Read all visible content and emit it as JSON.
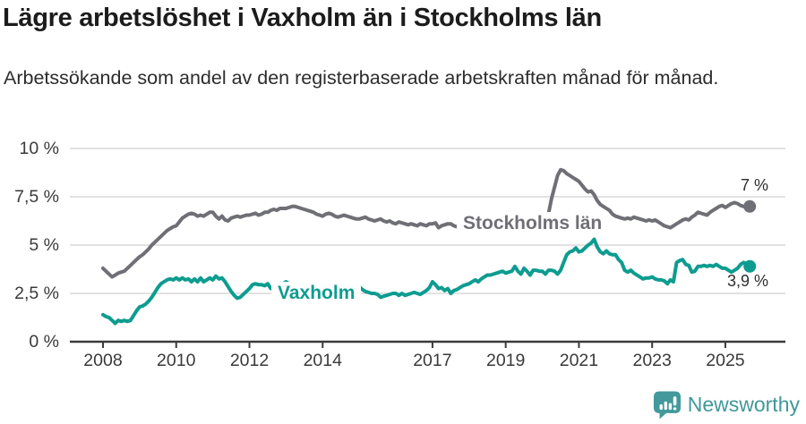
{
  "header": {
    "title": "Lägre arbetslöshet i Vaxholm än i Stockholms län",
    "subtitle": "Arbetssökande som andel av den registerbaserade arbetskraften månad för månad."
  },
  "chart_data": {
    "type": "line",
    "title": "Lägre arbetslöshet i Vaxholm än i Stockholms län",
    "xlabel": "",
    "ylabel": "",
    "ylim": [
      0,
      10
    ],
    "grid": true,
    "grid_color": "#d9d9d9",
    "axis_color": "#3b3b3b",
    "x_start": "2008-01",
    "x_end": "2025-09",
    "points_per_year": 12,
    "y_axis": {
      "ticks": [
        {
          "label": "0 %",
          "value": 0
        },
        {
          "label": "2,5 %",
          "value": 2.5
        },
        {
          "label": "5 %",
          "value": 5
        },
        {
          "label": "7,5 %",
          "value": 7.5
        },
        {
          "label": "10 %",
          "value": 10
        }
      ]
    },
    "x_axis": {
      "ticks": [
        {
          "label": "2008",
          "year": 2008
        },
        {
          "label": "2010",
          "year": 2010
        },
        {
          "label": "2012",
          "year": 2012
        },
        {
          "label": "2014",
          "year": 2014
        },
        {
          "label": "2017",
          "year": 2017
        },
        {
          "label": "2019",
          "year": 2019
        },
        {
          "label": "2021",
          "year": 2021
        },
        {
          "label": "2023",
          "year": 2023
        },
        {
          "label": "2025",
          "year": 2025
        }
      ]
    },
    "series": [
      {
        "name": "Stockholms län",
        "color": "#6f6f76",
        "end_label": "7 %",
        "values": [
          3.8,
          3.65,
          3.5,
          3.35,
          3.45,
          3.55,
          3.6,
          3.65,
          3.8,
          3.95,
          4.1,
          4.25,
          4.4,
          4.5,
          4.65,
          4.8,
          5.0,
          5.15,
          5.3,
          5.45,
          5.6,
          5.75,
          5.85,
          5.95,
          6.0,
          6.2,
          6.4,
          6.5,
          6.6,
          6.65,
          6.6,
          6.5,
          6.55,
          6.5,
          6.6,
          6.7,
          6.7,
          6.5,
          6.35,
          6.5,
          6.3,
          6.25,
          6.4,
          6.45,
          6.5,
          6.45,
          6.5,
          6.55,
          6.55,
          6.6,
          6.65,
          6.55,
          6.6,
          6.7,
          6.7,
          6.8,
          6.85,
          6.8,
          6.9,
          6.9,
          6.9,
          6.95,
          7.0,
          7.0,
          6.95,
          6.9,
          6.85,
          6.8,
          6.75,
          6.7,
          6.6,
          6.55,
          6.5,
          6.6,
          6.65,
          6.6,
          6.5,
          6.45,
          6.5,
          6.55,
          6.5,
          6.45,
          6.4,
          6.35,
          6.35,
          6.4,
          6.45,
          6.35,
          6.3,
          6.25,
          6.3,
          6.35,
          6.25,
          6.2,
          6.25,
          6.15,
          6.1,
          6.2,
          6.15,
          6.1,
          6.05,
          6.1,
          6.05,
          6.0,
          6.1,
          6.05,
          6.0,
          6.1,
          6.1,
          6.15,
          5.9,
          6.0,
          6.05,
          6.1,
          6.1,
          6.0,
          5.95,
          6.0,
          5.95,
          5.9,
          5.9,
          5.95,
          5.9,
          5.85,
          5.9,
          5.95,
          5.9,
          5.85,
          5.9,
          5.95,
          5.9,
          5.95,
          5.95,
          6.0,
          5.95,
          6.0,
          6.05,
          6.0,
          6.05,
          6.1,
          6.05,
          6.1,
          6.15,
          6.2,
          6.2,
          6.3,
          6.6,
          7.4,
          8.0,
          8.6,
          8.9,
          8.85,
          8.7,
          8.6,
          8.5,
          8.4,
          8.3,
          8.1,
          7.9,
          7.75,
          7.8,
          7.6,
          7.3,
          7.1,
          7.0,
          6.9,
          6.8,
          6.6,
          6.5,
          6.45,
          6.4,
          6.35,
          6.4,
          6.35,
          6.45,
          6.4,
          6.35,
          6.3,
          6.25,
          6.3,
          6.25,
          6.3,
          6.2,
          6.1,
          6.0,
          5.95,
          5.9,
          6.0,
          6.1,
          6.2,
          6.3,
          6.35,
          6.3,
          6.45,
          6.55,
          6.7,
          6.65,
          6.6,
          6.55,
          6.7,
          6.8,
          6.9,
          7.0,
          7.05,
          6.95,
          7.05,
          7.15,
          7.2,
          7.15,
          7.05,
          7.0,
          6.95,
          7.0
        ]
      },
      {
        "name": "Vaxholm",
        "color": "#0e9c90",
        "end_label": "3,9 %",
        "values": [
          1.4,
          1.3,
          1.25,
          1.1,
          0.95,
          1.1,
          1.05,
          1.1,
          1.05,
          1.1,
          1.35,
          1.6,
          1.8,
          1.85,
          1.95,
          2.1,
          2.3,
          2.55,
          2.8,
          3.0,
          3.1,
          3.2,
          3.25,
          3.2,
          3.3,
          3.2,
          3.3,
          3.2,
          3.25,
          3.1,
          3.25,
          3.1,
          3.3,
          3.1,
          3.2,
          3.3,
          3.2,
          3.4,
          3.25,
          3.3,
          3.1,
          2.85,
          2.6,
          2.4,
          2.25,
          2.3,
          2.45,
          2.6,
          2.75,
          2.95,
          3.0,
          2.95,
          2.95,
          2.9,
          3.0,
          2.75,
          2.8,
          2.65,
          2.8,
          3.0,
          3.1,
          3.0,
          2.95,
          2.9,
          2.95,
          2.9,
          2.85,
          2.9,
          2.85,
          2.8,
          2.85,
          2.9,
          2.9,
          2.85,
          2.9,
          2.85,
          2.8,
          2.85,
          2.8,
          2.85,
          2.9,
          2.85,
          2.9,
          2.88,
          2.85,
          2.7,
          2.6,
          2.55,
          2.5,
          2.5,
          2.45,
          2.3,
          2.35,
          2.4,
          2.45,
          2.5,
          2.5,
          2.4,
          2.5,
          2.4,
          2.45,
          2.5,
          2.55,
          2.5,
          2.45,
          2.55,
          2.65,
          2.8,
          3.1,
          2.95,
          2.75,
          2.8,
          2.65,
          2.75,
          2.5,
          2.65,
          2.7,
          2.8,
          2.9,
          2.95,
          3.0,
          3.1,
          3.2,
          3.1,
          3.25,
          3.35,
          3.45,
          3.45,
          3.5,
          3.55,
          3.6,
          3.65,
          3.55,
          3.6,
          3.65,
          3.9,
          3.65,
          3.5,
          3.8,
          3.65,
          3.45,
          3.7,
          3.7,
          3.65,
          3.65,
          3.5,
          3.7,
          3.7,
          3.65,
          3.5,
          3.7,
          4.1,
          4.5,
          4.65,
          4.7,
          4.85,
          4.65,
          4.7,
          4.85,
          5.0,
          5.1,
          5.3,
          4.9,
          4.65,
          4.55,
          4.7,
          4.55,
          4.5,
          4.5,
          4.25,
          4.1,
          3.7,
          3.6,
          3.7,
          3.55,
          3.45,
          3.35,
          3.25,
          3.3,
          3.3,
          3.35,
          3.25,
          3.2,
          3.2,
          3.15,
          3.0,
          3.2,
          3.1,
          4.1,
          4.2,
          4.25,
          4.0,
          3.95,
          3.6,
          3.65,
          3.9,
          3.9,
          3.95,
          3.9,
          3.95,
          3.9,
          4.0,
          3.9,
          3.8,
          3.8,
          3.7,
          3.6,
          3.7,
          3.8,
          4.0,
          4.1,
          4.0,
          3.9
        ]
      }
    ]
  },
  "footer": {
    "brand": "Newsworthy",
    "brand_color": "#40989a"
  }
}
